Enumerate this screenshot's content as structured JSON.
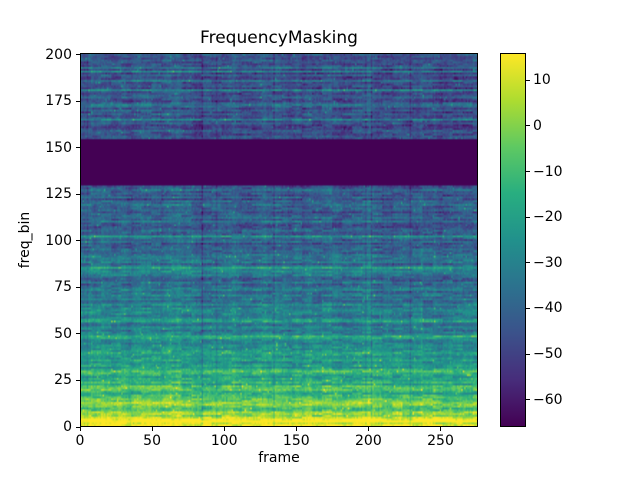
{
  "chart_data": {
    "type": "heatmap",
    "title": "FrequencyMasking",
    "xlabel": "frame",
    "ylabel": "freq_bin",
    "x_range": [
      0,
      276
    ],
    "y_range": [
      0,
      201
    ],
    "n_frames": 276,
    "n_bins": 201,
    "x_ticks": [
      0,
      50,
      100,
      150,
      200,
      250
    ],
    "y_ticks": [
      0,
      25,
      50,
      75,
      100,
      125,
      150,
      175,
      200
    ],
    "masked_band": {
      "y_start": 130,
      "y_end": 155,
      "color": "#440154",
      "note": "FrequencyMasking augmentation: all frames set to minimum value for freq bins ~130-155"
    },
    "colorbar": {
      "vmin": -66,
      "vmax": 16,
      "ticks": [
        10,
        0,
        -10,
        -20,
        -30,
        -40,
        -50,
        -60
      ],
      "tick_labels": [
        "10",
        "0",
        "−10",
        "−20",
        "−30",
        "−40",
        "−50",
        "−60"
      ],
      "colormap": "viridis"
    },
    "colormap_stops": [
      [
        68,
        1,
        84
      ],
      [
        71,
        45,
        123
      ],
      [
        59,
        82,
        139
      ],
      [
        44,
        114,
        142
      ],
      [
        33,
        145,
        140
      ],
      [
        40,
        174,
        128
      ],
      [
        94,
        201,
        98
      ],
      [
        173,
        220,
        48
      ],
      [
        253,
        231,
        37
      ]
    ],
    "description": "Spectrogram-style heatmap (viridis colormap) of log-power values, frame index (0-275) vs frequency bin (0-200). A dark horizontal frequency-mask band spans bins ~130-155 across all frames. Energy is concentrated in low bins (bright yellow-green horizontal harmonics below bin ~70), becoming sparse purple/blue noise with green speckles at higher bins. Color scale roughly -66 to 16 dB."
  }
}
